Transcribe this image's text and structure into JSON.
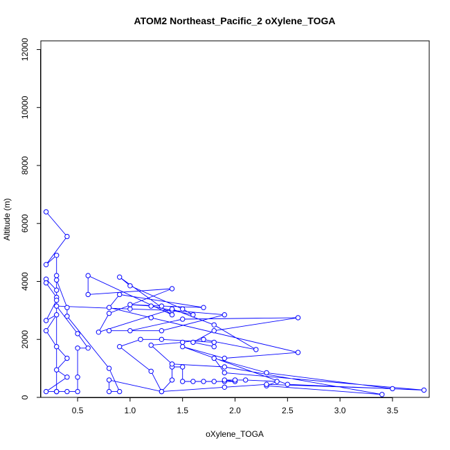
{
  "chart_data": {
    "type": "scatter",
    "title": "ATOM2 Northeast_Pacific_2 oXylene_TOGA",
    "xlabel": "oXylene_TOGA",
    "ylabel": "Altitude (m)",
    "xlim": [
      0.15,
      3.85
    ],
    "ylim": [
      0,
      12300
    ],
    "xticks": [
      0.5,
      1.0,
      1.5,
      2.0,
      2.5,
      3.0,
      3.5
    ],
    "xtick_labels": [
      "0.5",
      "1.0",
      "1.5",
      "2.0",
      "2.5",
      "3.0",
      "3.5"
    ],
    "yticks": [
      0,
      2000,
      4000,
      6000,
      8000,
      10000,
      12000
    ],
    "ytick_labels": [
      "0",
      "2000",
      "4000",
      "6000",
      "8000",
      "10000",
      "12000"
    ],
    "connected": true,
    "marker": "open-circle",
    "color": "#0000ff",
    "grid": false,
    "points": [
      [
        0.2,
        6400
      ],
      [
        0.4,
        5550
      ],
      [
        0.2,
        4580
      ],
      [
        0.3,
        4900
      ],
      [
        0.3,
        4200
      ],
      [
        0.3,
        3700
      ],
      [
        0.2,
        4080
      ],
      [
        0.2,
        3950
      ],
      [
        0.3,
        3450
      ],
      [
        0.3,
        3350
      ],
      [
        0.2,
        2650
      ],
      [
        0.3,
        2850
      ],
      [
        0.2,
        2300
      ],
      [
        0.3,
        1750
      ],
      [
        0.4,
        1350
      ],
      [
        0.3,
        950
      ],
      [
        0.4,
        700
      ],
      [
        0.2,
        200
      ],
      [
        0.3,
        200
      ],
      [
        0.4,
        200
      ],
      [
        0.3,
        200
      ],
      [
        0.5,
        200
      ],
      [
        0.5,
        700
      ],
      [
        0.5,
        1700
      ],
      [
        0.6,
        1700
      ],
      [
        0.5,
        2200
      ],
      [
        0.3,
        3150
      ],
      [
        1.0,
        3050
      ],
      [
        1.4,
        3000
      ],
      [
        1.9,
        2850
      ],
      [
        1.3,
        2300
      ],
      [
        0.8,
        2300
      ],
      [
        1.0,
        2300
      ],
      [
        1.5,
        2700
      ],
      [
        2.6,
        2750
      ],
      [
        1.8,
        2300
      ],
      [
        1.6,
        1900
      ],
      [
        1.8,
        1750
      ],
      [
        1.8,
        1900
      ],
      [
        1.3,
        2000
      ],
      [
        1.1,
        2000
      ],
      [
        0.9,
        1750
      ],
      [
        1.2,
        900
      ],
      [
        1.3,
        200
      ],
      [
        1.4,
        600
      ],
      [
        1.4,
        1050
      ],
      [
        1.5,
        1050
      ],
      [
        1.5,
        550
      ],
      [
        1.6,
        550
      ],
      [
        1.7,
        550
      ],
      [
        1.8,
        550
      ],
      [
        1.9,
        550
      ],
      [
        2.0,
        550
      ],
      [
        1.9,
        600
      ],
      [
        2.0,
        600
      ],
      [
        2.1,
        600
      ],
      [
        2.4,
        550
      ],
      [
        2.3,
        400
      ],
      [
        3.4,
        100
      ],
      [
        1.9,
        1050
      ],
      [
        1.4,
        1150
      ],
      [
        1.2,
        1800
      ],
      [
        1.5,
        1900
      ],
      [
        1.7,
        2000
      ],
      [
        2.2,
        1650
      ],
      [
        1.8,
        2500
      ],
      [
        1.4,
        3050
      ],
      [
        0.7,
        2250
      ],
      [
        0.8,
        2900
      ],
      [
        1.4,
        3750
      ],
      [
        0.6,
        3550
      ],
      [
        0.6,
        4200
      ],
      [
        1.4,
        2850
      ],
      [
        0.9,
        4150
      ],
      [
        1.0,
        3850
      ],
      [
        1.5,
        3050
      ],
      [
        1.6,
        2850
      ],
      [
        1.2,
        3150
      ],
      [
        1.0,
        3200
      ],
      [
        1.3,
        3150
      ],
      [
        1.7,
        3100
      ],
      [
        0.9,
        3550
      ],
      [
        0.8,
        3100
      ],
      [
        1.2,
        2750
      ],
      [
        2.6,
        1550
      ],
      [
        1.9,
        1350
      ],
      [
        1.5,
        1750
      ],
      [
        2.5,
        450
      ],
      [
        3.8,
        250
      ],
      [
        1.9,
        850
      ],
      [
        1.8,
        1350
      ],
      [
        2.3,
        850
      ],
      [
        3.5,
        300
      ],
      [
        2.3,
        450
      ],
      [
        1.9,
        350
      ],
      [
        1.3,
        200
      ],
      [
        0.8,
        600
      ],
      [
        0.8,
        200
      ],
      [
        0.9,
        200
      ],
      [
        0.8,
        1000
      ],
      [
        0.4,
        2800
      ],
      [
        0.4,
        3100
      ],
      [
        0.3,
        4050
      ],
      [
        0.3,
        200
      ]
    ]
  }
}
